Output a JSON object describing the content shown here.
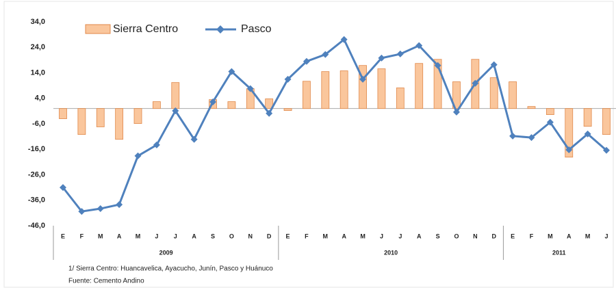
{
  "chart_data": {
    "type": "bar_line",
    "categories": [
      "E",
      "F",
      "M",
      "A",
      "M",
      "J",
      "J",
      "A",
      "S",
      "O",
      "N",
      "D",
      "E",
      "F",
      "M",
      "A",
      "M",
      "J",
      "J",
      "A",
      "S",
      "O",
      "N",
      "D",
      "E",
      "F",
      "M",
      "A",
      "M",
      "J"
    ],
    "years": [
      "2009",
      "2010",
      "2011"
    ],
    "series": [
      {
        "name": "Sierra Centro",
        "type": "bar",
        "color": "#fac69c",
        "values": [
          -4.0,
          -10.2,
          -7.2,
          -12.1,
          -5.9,
          2.7,
          10.2,
          0,
          3.5,
          2.7,
          7.8,
          3.8,
          -0.8,
          10.7,
          14.5,
          14.8,
          16.9,
          15.6,
          8.1,
          17.7,
          19.3,
          10.5,
          19.3,
          12.1,
          10.5,
          0.8,
          -2.4,
          -19.1,
          -7.0,
          -10.2
        ]
      },
      {
        "name": "Pasco",
        "type": "line",
        "color": "#4f81bd",
        "values": [
          -31.0,
          -40.4,
          -39.3,
          -37.7,
          -18.6,
          -14.3,
          -0.9,
          -12.1,
          2.6,
          14.5,
          7.8,
          -1.9,
          11.5,
          18.5,
          21.2,
          27.1,
          11.5,
          19.8,
          21.4,
          24.7,
          16.9,
          -1.4,
          9.9,
          17.2,
          -10.8,
          -11.4,
          -5.4,
          -16.2,
          -10.0,
          -16.4
        ]
      }
    ],
    "ylim": [
      -46,
      34
    ],
    "yticks": [
      {
        "value": 34,
        "label": "34,0"
      },
      {
        "value": 24,
        "label": "24,0"
      },
      {
        "value": 14,
        "label": "14,0"
      },
      {
        "value": 4,
        "label": "4,0"
      },
      {
        "value": -6,
        "label": "-6,0"
      },
      {
        "value": -16,
        "label": "-16,0"
      },
      {
        "value": -26,
        "label": "-26,0"
      },
      {
        "value": -36,
        "label": "-36,0"
      },
      {
        "value": -46,
        "label": "-46,0"
      }
    ],
    "notes": [
      "1/ Sierra Centro: Huancavelica,  Ayacucho, Junín, Pasco y Huánuco",
      "Fuente: Cemento Andino"
    ]
  }
}
